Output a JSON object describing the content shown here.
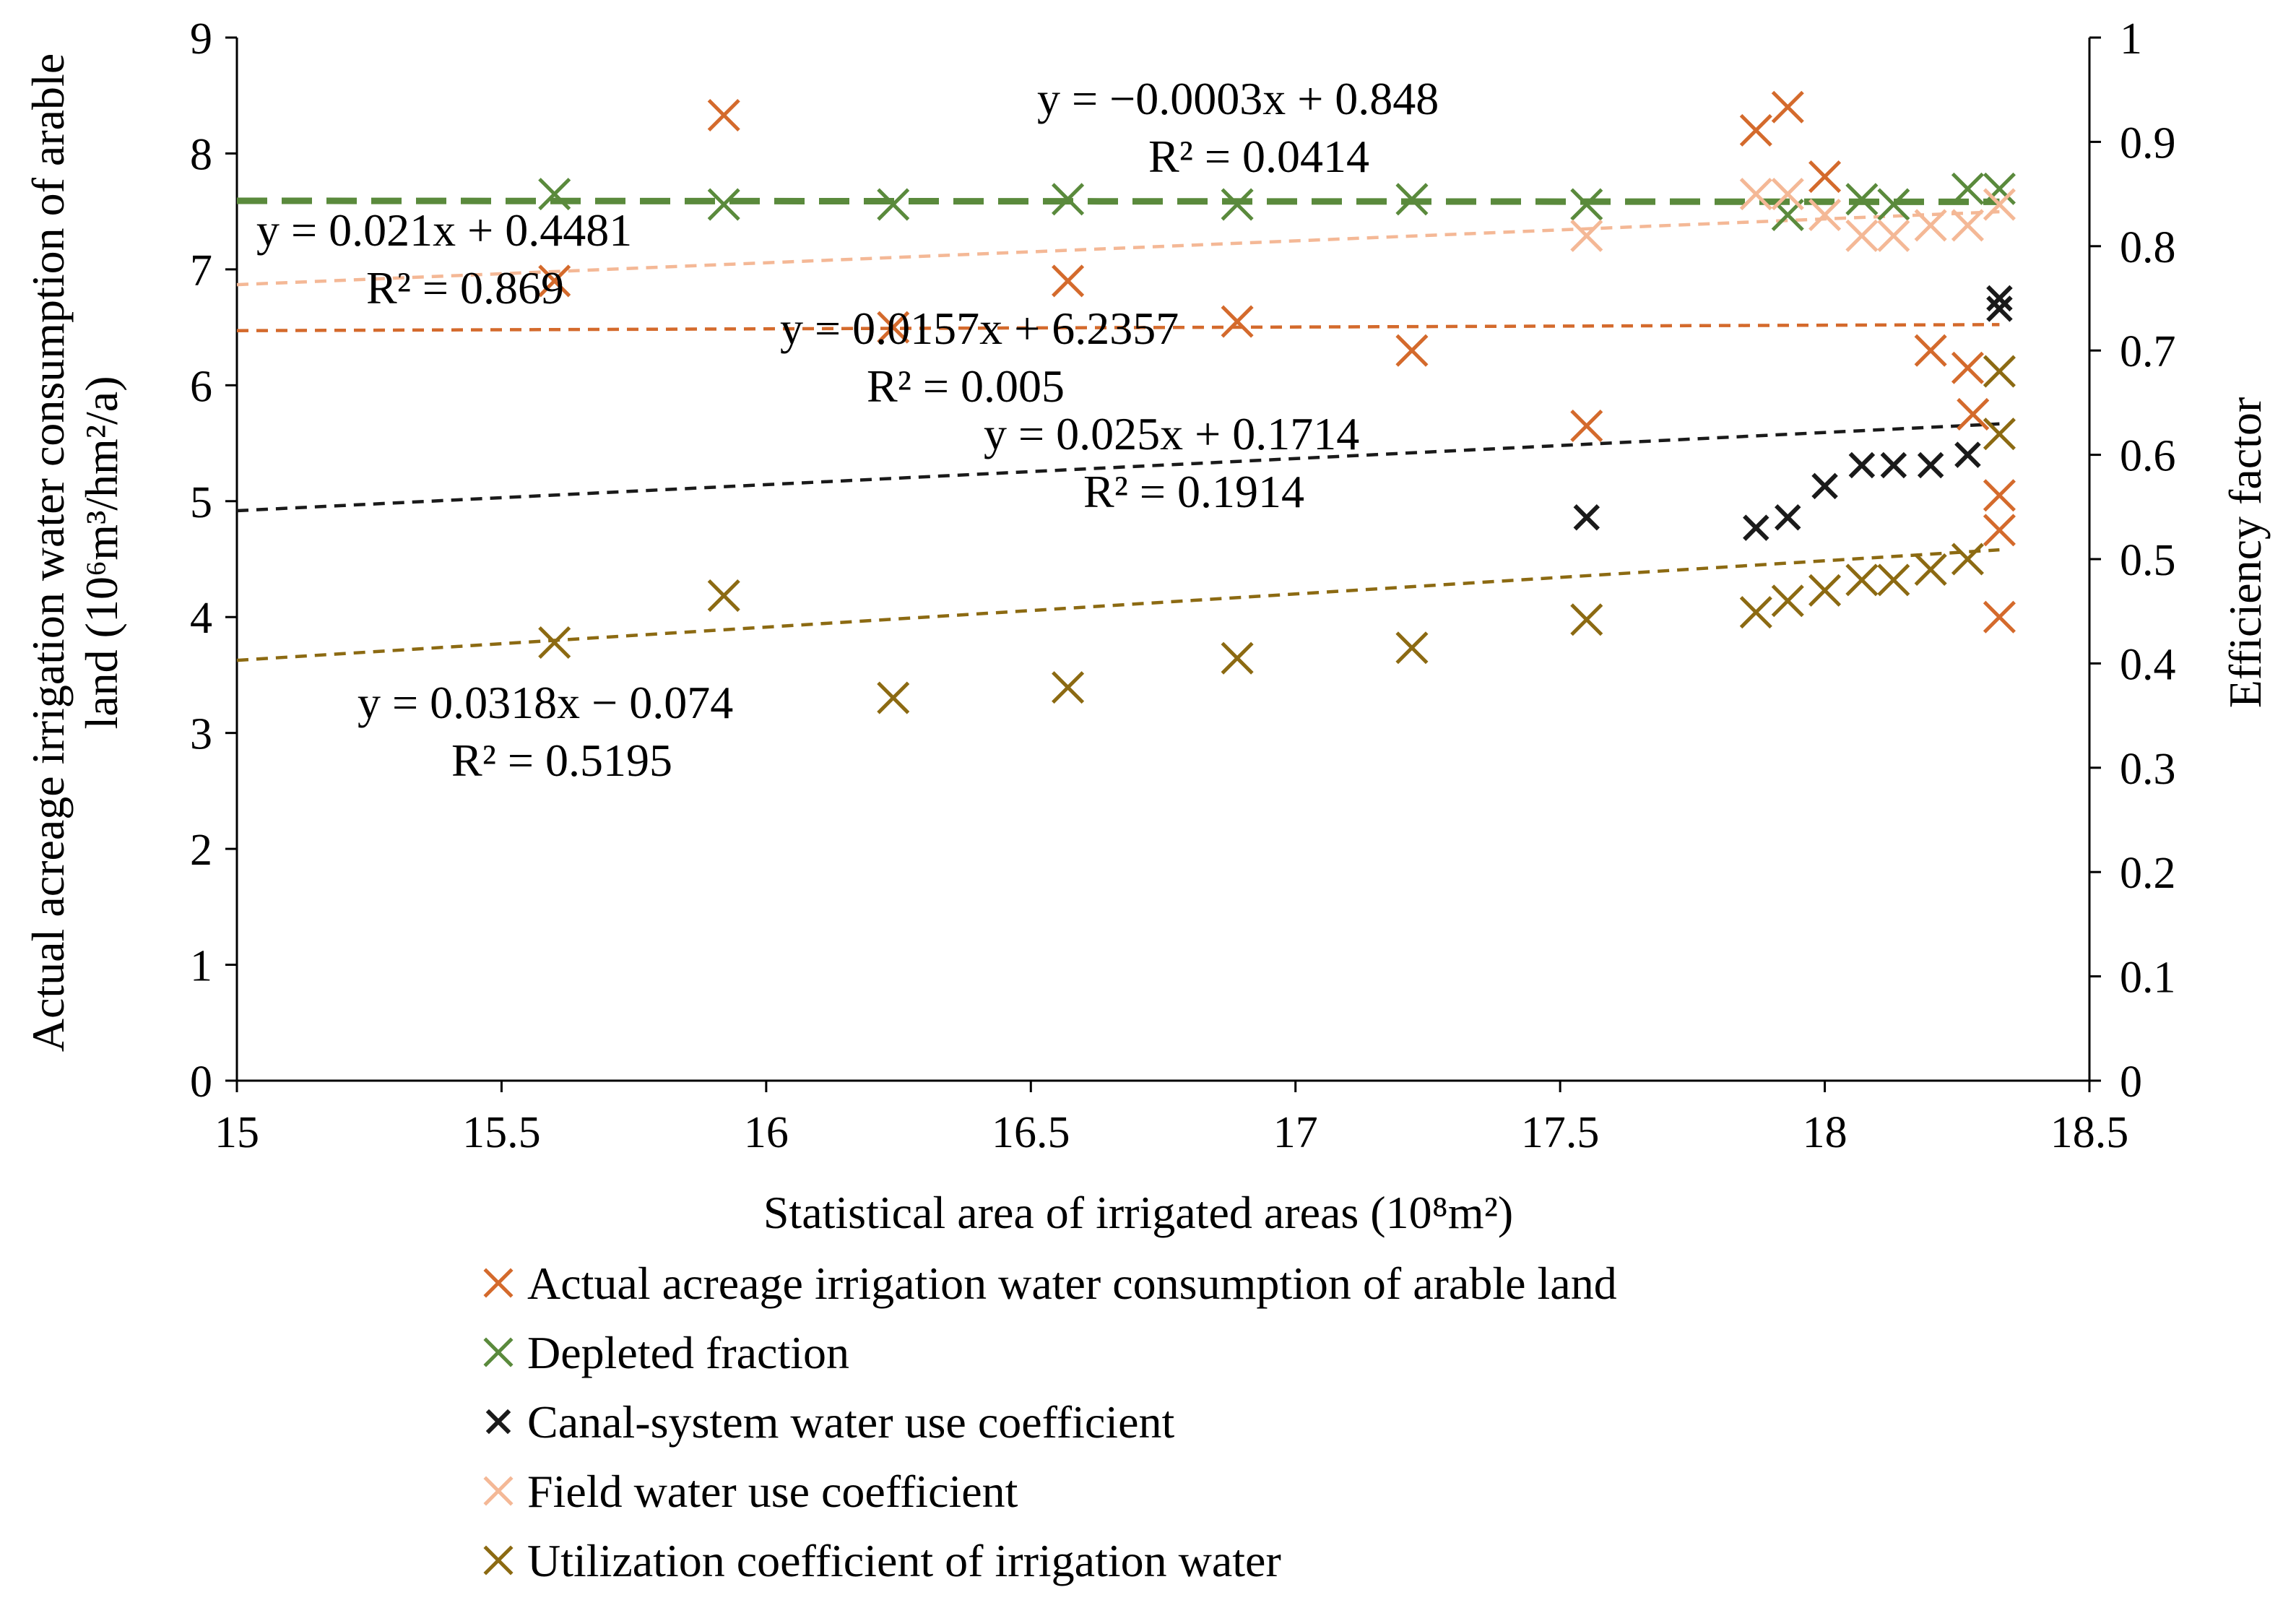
{
  "chart_data": {
    "type": "scatter",
    "xlabel": "Statistical area of irrigated areas (10⁸m²)",
    "ylabel_left_line1": "Actual acreage irrigation water consumption of arable",
    "ylabel_left_line2": "land (10⁶m³/hm²/a)",
    "ylabel_right": "Efficiency factor",
    "xlim": [
      15,
      18.5
    ],
    "ylim_left": [
      0,
      9
    ],
    "ylim_right": [
      0,
      1
    ],
    "x_ticks": [
      "15",
      "15.5",
      "16",
      "16.5",
      "17",
      "17.5",
      "18",
      "18.5"
    ],
    "y_left_ticks": [
      "0",
      "1",
      "2",
      "3",
      "4",
      "5",
      "6",
      "7",
      "8",
      "9"
    ],
    "y_right_ticks": [
      "0",
      "0.1",
      "0.2",
      "0.3",
      "0.4",
      "0.5",
      "0.6",
      "0.7",
      "0.8",
      "0.9",
      "1"
    ],
    "series": [
      {
        "name": "Actual acreage irrigation water consumption of arable land",
        "axis": "left",
        "color": "#d46a2c",
        "marker": "x",
        "x": [
          15.6,
          15.92,
          16.24,
          16.57,
          16.89,
          17.22,
          17.55,
          17.87,
          17.93,
          18.0,
          18.2,
          18.27,
          18.28,
          18.33,
          18.33,
          18.33
        ],
        "y": [
          6.9,
          8.33,
          6.5,
          6.9,
          6.55,
          6.3,
          5.65,
          8.2,
          8.4,
          7.8,
          6.3,
          6.15,
          5.75,
          5.05,
          4.75,
          4.0
        ],
        "trendline": {
          "slope": 0.0157,
          "intercept": 6.2357,
          "style": "dashed",
          "equation": "y = 0.0157x + 6.2357",
          "r2": "R² = 0.005"
        }
      },
      {
        "name": "Depleted fraction",
        "axis": "right",
        "color": "#5a8a3c",
        "marker": "x",
        "x": [
          15.6,
          15.92,
          16.24,
          16.57,
          16.89,
          17.22,
          17.55,
          17.93,
          18.07,
          18.13,
          18.27,
          18.33
        ],
        "y": [
          0.85,
          0.84,
          0.84,
          0.845,
          0.84,
          0.845,
          0.84,
          0.83,
          0.845,
          0.84,
          0.855,
          0.855
        ],
        "trendline": {
          "slope": -0.0003,
          "intercept": 0.848,
          "style": "bold-dashed",
          "equation": "y = −0.0003x + 0.848",
          "r2": "R² = 0.0414"
        }
      },
      {
        "name": "Canal-system water use coefficient",
        "axis": "right",
        "color": "#1a1a1a",
        "marker": "x",
        "x": [
          17.55,
          17.87,
          17.93,
          18.0,
          18.07,
          18.13,
          18.2,
          18.27,
          18.33,
          18.33
        ],
        "y": [
          0.54,
          0.53,
          0.54,
          0.57,
          0.59,
          0.59,
          0.59,
          0.6,
          0.75,
          0.74
        ],
        "trendline": {
          "slope": 0.025,
          "intercept": 0.1714,
          "style": "dashed",
          "equation": "y = 0.025x + 0.1714",
          "r2": "R² = 0.1914"
        }
      },
      {
        "name": "Field water use coefficient",
        "axis": "right",
        "color": "#f4b896",
        "marker": "x",
        "x": [
          17.55,
          17.87,
          17.93,
          18.0,
          18.07,
          18.13,
          18.2,
          18.27,
          18.33
        ],
        "y": [
          0.81,
          0.85,
          0.85,
          0.83,
          0.81,
          0.81,
          0.82,
          0.82,
          0.84
        ],
        "trendline": {
          "slope": 0.021,
          "intercept": 0.4481,
          "style": "dashed",
          "equation": "y = 0.021x + 0.4481",
          "r2": "R² = 0.869"
        }
      },
      {
        "name": "Utilization coefficient of irrigation water",
        "axis": "right",
        "color": "#8c6a12",
        "marker": "x",
        "x": [
          15.6,
          15.92,
          16.24,
          16.57,
          16.89,
          17.22,
          17.55,
          17.87,
          17.93,
          18.0,
          18.07,
          18.13,
          18.2,
          18.27,
          18.33,
          18.33
        ],
        "y": [
          0.42,
          0.465,
          0.367,
          0.377,
          0.405,
          0.415,
          0.442,
          0.449,
          0.46,
          0.47,
          0.48,
          0.48,
          0.49,
          0.5,
          0.62,
          0.68
        ],
        "trendline": {
          "slope": 0.0318,
          "intercept": -0.074,
          "style": "dashed",
          "equation": "y = 0.0318x − 0.074",
          "r2": "R² = 0.5195"
        }
      }
    ]
  }
}
